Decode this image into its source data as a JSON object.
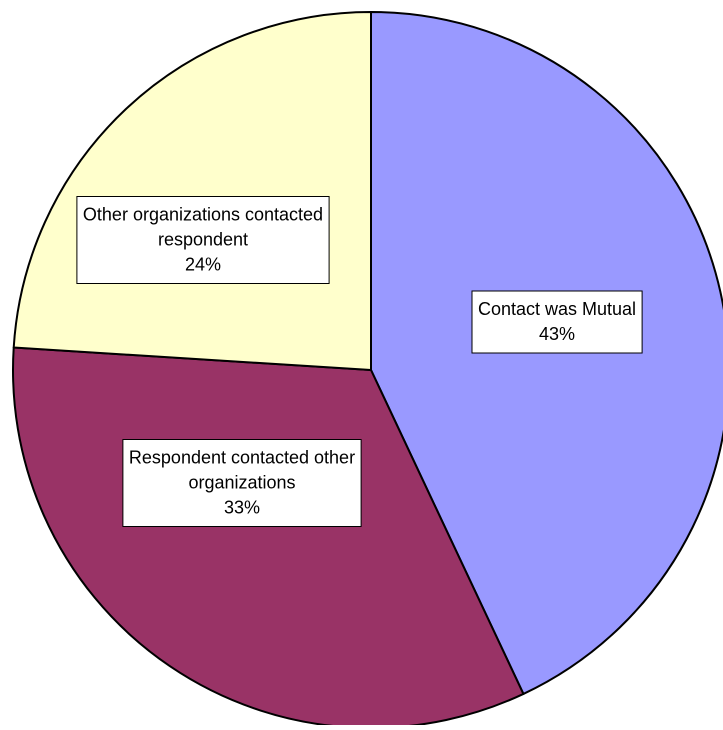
{
  "chart_data": {
    "type": "pie",
    "title": "",
    "start_angle_deg": 0,
    "direction": "clockwise",
    "slices": [
      {
        "label": "Contact was Mutual",
        "value": 43,
        "percent_label": "43%",
        "color": "#9999FF"
      },
      {
        "label": "Respondent contacted other organizations",
        "value": 33,
        "percent_label": "33%",
        "color": "#993366"
      },
      {
        "label": "Other organizations contacted respondent",
        "value": 24,
        "percent_label": "24%",
        "color": "#FFFFCC"
      }
    ]
  }
}
